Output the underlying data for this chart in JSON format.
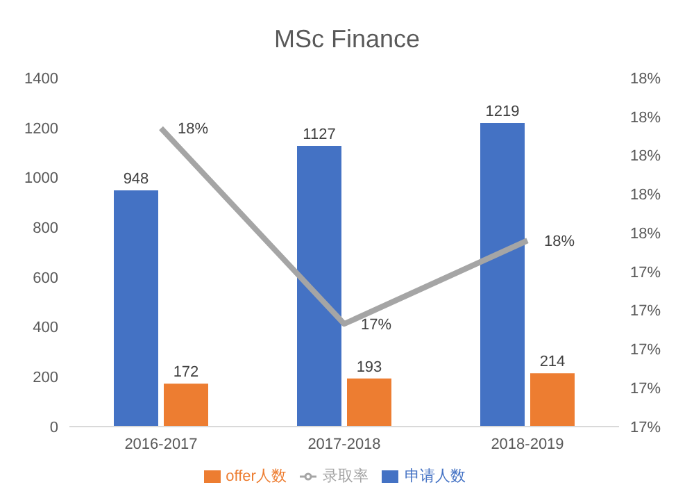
{
  "chart_data": {
    "type": "bar",
    "title": "MSc Finance",
    "categories": [
      "2016-2017",
      "2017-2018",
      "2018-2019"
    ],
    "series": [
      {
        "name": "申请人数",
        "color": "#4472c4",
        "values": [
          948,
          1127,
          1219
        ]
      },
      {
        "name": "offer人数",
        "color": "#ed7d31",
        "values": [
          172,
          193,
          214
        ]
      },
      {
        "name": "录取率",
        "type": "line",
        "axis": "y2",
        "color": "#a5a5a5",
        "values": [
          18.14,
          17.13,
          17.56
        ],
        "value_labels": [
          "18%",
          "17%",
          "18%"
        ]
      }
    ],
    "ylim": [
      0,
      1400
    ],
    "yticks": [
      0,
      200,
      400,
      600,
      800,
      1000,
      1200,
      1400
    ],
    "y2lim": [
      16.6,
      18.4
    ],
    "y2ticks": [
      {
        "value": 16.6,
        "label": "17%"
      },
      {
        "value": 16.8,
        "label": "17%"
      },
      {
        "value": 17.0,
        "label": "17%"
      },
      {
        "value": 17.2,
        "label": "17%"
      },
      {
        "value": 17.4,
        "label": "17%"
      },
      {
        "value": 17.6,
        "label": "18%"
      },
      {
        "value": 17.8,
        "label": "18%"
      },
      {
        "value": 18.0,
        "label": "18%"
      },
      {
        "value": 18.2,
        "label": "18%"
      },
      {
        "value": 18.4,
        "label": "18%"
      }
    ],
    "data_labels": true,
    "legend": "bottom",
    "grid": false,
    "marker": "none"
  }
}
